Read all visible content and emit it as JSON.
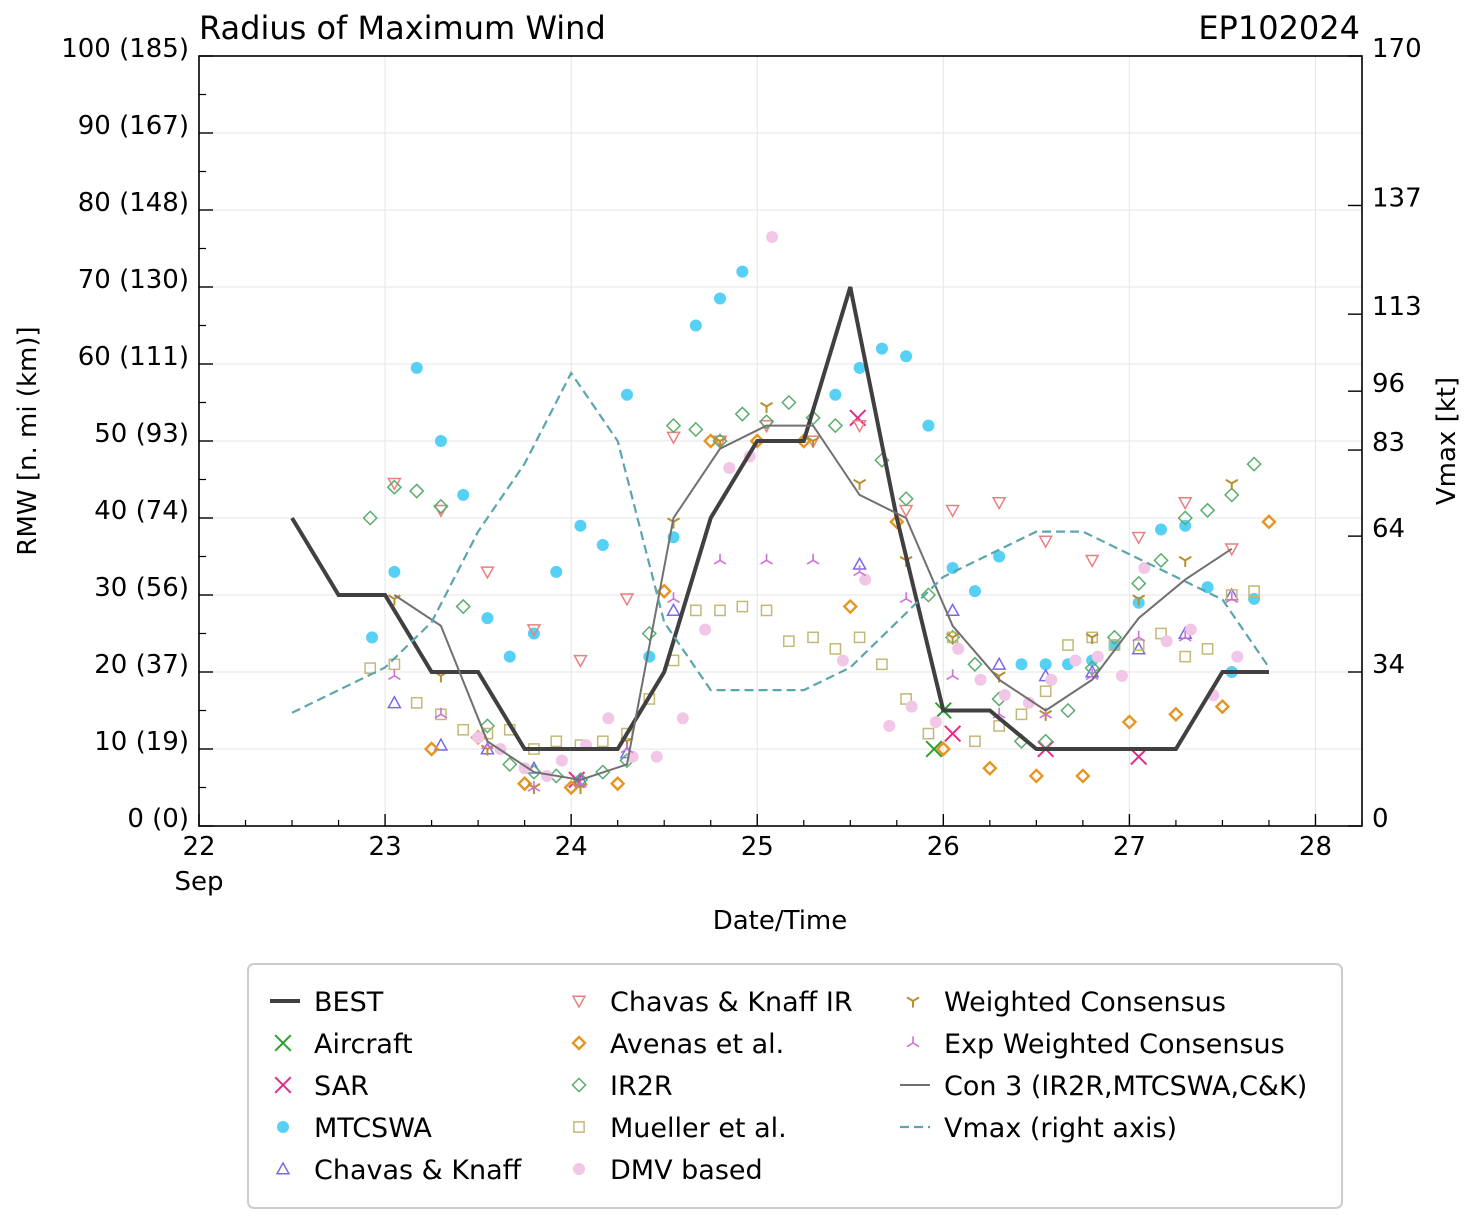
{
  "chart_data": {
    "type": "scatter",
    "title": "Radius of Maximum Wind",
    "storm_id": "EP102024",
    "xlabel": "Date/Time",
    "ylabel": "RMW [n. mi (km)]",
    "y2label": "Vmax [kt]",
    "xlim": [
      22.0,
      28.25
    ],
    "ylim": [
      0,
      100
    ],
    "xticks": [
      {
        "value": 22,
        "label": "22",
        "sublabel": "Sep"
      },
      {
        "value": 23,
        "label": "23",
        "sublabel": ""
      },
      {
        "value": 24,
        "label": "24",
        "sublabel": ""
      },
      {
        "value": 25,
        "label": "25",
        "sublabel": ""
      },
      {
        "value": 26,
        "label": "26",
        "sublabel": ""
      },
      {
        "value": 27,
        "label": "27",
        "sublabel": ""
      },
      {
        "value": 28,
        "label": "28",
        "sublabel": ""
      }
    ],
    "yticks": [
      {
        "value": 0,
        "label": "0 (0)"
      },
      {
        "value": 10,
        "label": "10 (19)"
      },
      {
        "value": 20,
        "label": "20 (37)"
      },
      {
        "value": 30,
        "label": "30 (56)"
      },
      {
        "value": 40,
        "label": "40 (74)"
      },
      {
        "value": 50,
        "label": "50 (93)"
      },
      {
        "value": 60,
        "label": "60 (111)"
      },
      {
        "value": 70,
        "label": "70 (130)"
      },
      {
        "value": 80,
        "label": "80 (148)"
      },
      {
        "value": 90,
        "label": "90 (167)"
      },
      {
        "value": 100,
        "label": "100 (185)"
      }
    ],
    "y2lim": [
      0,
      170
    ],
    "y2ticks": [
      {
        "value": 0,
        "label": "0"
      },
      {
        "value": 34,
        "label": "34"
      },
      {
        "value": 64,
        "label": "64"
      },
      {
        "value": 83,
        "label": "83"
      },
      {
        "value": 96,
        "label": "96"
      },
      {
        "value": 113,
        "label": "113"
      },
      {
        "value": 137,
        "label": "137"
      },
      {
        "value": 170,
        "label": "170"
      }
    ],
    "legend_placement": "below",
    "series": [
      {
        "name": "BEST",
        "kind": "line",
        "color": "#404040",
        "x": [
          22.5,
          22.75,
          23.0,
          23.25,
          23.5,
          23.75,
          24.0,
          24.25,
          24.5,
          24.75,
          25.0,
          25.25,
          25.5,
          25.75,
          26.0,
          26.25,
          26.5,
          26.75,
          27.0,
          27.25,
          27.5,
          27.75
        ],
        "y": [
          40,
          30,
          30,
          20,
          20,
          10,
          10,
          10,
          20,
          40,
          50,
          50,
          70,
          40,
          15,
          15,
          10,
          10,
          10,
          10,
          20,
          20
        ]
      },
      {
        "name": "Aircraft",
        "kind": "marker",
        "marker": "x",
        "color": "#2ca02c",
        "x": [
          25.95,
          26.0
        ],
        "y": [
          10,
          15
        ]
      },
      {
        "name": "SAR",
        "kind": "marker",
        "marker": "x",
        "color": "#e7298a",
        "x": [
          24.03,
          25.54,
          26.05,
          26.55,
          27.05
        ],
        "y": [
          6,
          53,
          12,
          10,
          9
        ]
      },
      {
        "name": "MTCSWA",
        "kind": "marker",
        "marker": "circle",
        "color": "#56d0f5",
        "x": [
          22.93,
          23.05,
          23.17,
          23.3,
          23.42,
          23.55,
          23.67,
          23.8,
          23.92,
          24.05,
          24.17,
          24.3,
          24.42,
          24.55,
          24.67,
          24.8,
          24.92,
          25.42,
          25.55,
          25.67,
          25.8,
          25.92,
          26.05,
          26.17,
          26.3,
          26.42,
          26.55,
          26.67,
          26.8,
          26.92,
          27.05,
          27.17,
          27.3,
          27.42,
          27.55,
          27.67
        ],
        "y": [
          24.5,
          33,
          59.5,
          50,
          43,
          27,
          22,
          25,
          33,
          39,
          36.5,
          56,
          22,
          37.5,
          65,
          68.5,
          72,
          56,
          59.5,
          62,
          61,
          52,
          33.5,
          30.5,
          35,
          21,
          21,
          21,
          21.5,
          23.5,
          29,
          38.5,
          39,
          31,
          20,
          29.5
        ]
      },
      {
        "name": "Chavas & Knaff",
        "kind": "marker",
        "marker": "triangle-up",
        "color": "#7b68ee",
        "x": [
          23.05,
          23.3,
          23.55,
          23.8,
          24.05,
          24.3,
          24.55,
          25.55,
          26.05,
          26.3,
          26.55,
          26.8,
          27.05,
          27.3,
          27.55
        ],
        "y": [
          16,
          10.5,
          10,
          7.5,
          6,
          9.5,
          28,
          34,
          28,
          21,
          19.5,
          20,
          23,
          25,
          30
        ]
      },
      {
        "name": "Chavas & Knaff IR",
        "kind": "marker",
        "marker": "triangle-down",
        "color": "#e88080",
        "x": [
          23.05,
          23.3,
          23.55,
          23.8,
          24.05,
          24.3,
          24.55,
          24.8,
          25.05,
          25.3,
          25.55,
          25.8,
          26.05,
          26.3,
          26.55,
          26.8,
          27.05,
          27.3,
          27.55
        ],
        "y": [
          44.5,
          41,
          33,
          25.5,
          21.5,
          29.5,
          50.5,
          50,
          52,
          50,
          52,
          41,
          41,
          42,
          37,
          34.5,
          37.5,
          42,
          36
        ]
      },
      {
        "name": "Avenas et al.",
        "kind": "marker",
        "marker": "diamond",
        "color": "#e69520",
        "x": [
          23.25,
          23.5,
          23.75,
          24.0,
          24.25,
          24.5,
          24.75,
          25.0,
          25.25,
          25.5,
          25.75,
          26.0,
          26.25,
          26.5,
          26.75,
          27.0,
          27.25,
          27.5,
          27.75
        ],
        "y": [
          10,
          11.5,
          5.5,
          5,
          5.5,
          30.5,
          50,
          50,
          50,
          28.5,
          39.5,
          10,
          7.5,
          6.5,
          6.5,
          13.5,
          14.5,
          15.5,
          39.5
        ]
      },
      {
        "name": "IR2R",
        "kind": "marker",
        "marker": "diamond-open",
        "color": "#5aad6d",
        "x": [
          22.92,
          23.05,
          23.17,
          23.3,
          23.42,
          23.55,
          23.67,
          23.8,
          23.92,
          24.05,
          24.17,
          24.3,
          24.42,
          24.55,
          24.67,
          24.8,
          24.92,
          25.05,
          25.17,
          25.3,
          25.42,
          25.67,
          25.8,
          25.92,
          26.05,
          26.17,
          26.3,
          26.42,
          26.55,
          26.67,
          26.8,
          26.92,
          27.05,
          27.17,
          27.3,
          27.42,
          27.55,
          27.67
        ],
        "y": [
          40,
          44,
          43.5,
          41.5,
          28.5,
          13,
          8,
          7,
          6.5,
          6,
          7,
          8.5,
          25,
          52,
          51.5,
          50,
          53.5,
          52.5,
          55,
          53,
          52,
          47.5,
          42.5,
          30,
          24.5,
          21,
          16.5,
          11,
          11,
          15,
          20.5,
          24.5,
          31.5,
          34.5,
          40,
          41,
          43,
          47
        ]
      },
      {
        "name": "Mueller et al.",
        "kind": "marker",
        "marker": "square-open",
        "color": "#c2b878",
        "x": [
          22.92,
          23.05,
          23.17,
          23.3,
          23.42,
          23.55,
          23.67,
          23.8,
          23.92,
          24.05,
          24.17,
          24.3,
          24.42,
          24.55,
          24.67,
          24.8,
          24.92,
          25.05,
          25.17,
          25.3,
          25.42,
          25.55,
          25.67,
          25.8,
          25.92,
          26.05,
          26.17,
          26.3,
          26.42,
          26.55,
          26.67,
          26.8,
          26.92,
          27.05,
          27.17,
          27.3,
          27.42,
          27.55,
          27.67
        ],
        "y": [
          20.5,
          21,
          16,
          14.5,
          12.5,
          12,
          12.5,
          10,
          11,
          10.5,
          11,
          12,
          16.5,
          21.5,
          28,
          28,
          28.5,
          28,
          24,
          24.5,
          23,
          24.5,
          21,
          16.5,
          12,
          24.5,
          11,
          13,
          14.5,
          17.5,
          23.5,
          24.5,
          23.5,
          23.5,
          25,
          22,
          23,
          30,
          30.5
        ]
      },
      {
        "name": "DMV based",
        "kind": "marker",
        "marker": "circle",
        "color": "#f2c6e6",
        "x": [
          23.5,
          23.62,
          23.75,
          23.87,
          23.95,
          24.08,
          24.2,
          24.33,
          24.46,
          24.6,
          24.72,
          24.85,
          24.96,
          25.08,
          25.46,
          25.58,
          25.71,
          25.83,
          25.96,
          26.08,
          26.2,
          26.33,
          26.46,
          26.58,
          26.71,
          26.83,
          26.96,
          27.08,
          27.2,
          27.33,
          27.45,
          27.58
        ],
        "y": [
          11.5,
          10,
          7.5,
          6.5,
          8.5,
          10.5,
          14,
          9,
          9,
          14,
          25.5,
          46.5,
          48,
          76.5,
          21.5,
          32,
          13,
          15.5,
          13.5,
          23,
          19,
          17,
          16,
          19,
          21.5,
          22,
          19.5,
          33.5,
          24,
          25.5,
          17,
          22
        ]
      },
      {
        "name": "Weighted Consensus",
        "kind": "marker",
        "marker": "tri-down",
        "color": "#b8902e",
        "x": [
          23.05,
          23.3,
          23.55,
          23.8,
          24.05,
          24.3,
          24.55,
          24.8,
          25.05,
          25.3,
          25.55,
          25.8,
          26.05,
          26.3,
          26.55,
          26.8,
          27.05,
          27.3,
          27.55
        ],
        "y": [
          29.5,
          19.5,
          10,
          5,
          5,
          11,
          39.5,
          50,
          54.5,
          50,
          44.5,
          34.5,
          24.5,
          19.5,
          14.5,
          24.5,
          29.5,
          34.5,
          44.5
        ]
      },
      {
        "name": "Exp Weighted Consensus",
        "kind": "marker",
        "marker": "tri-up",
        "color": "#cf6fd8",
        "x": [
          23.05,
          23.3,
          23.55,
          23.8,
          24.05,
          24.3,
          24.55,
          24.8,
          25.05,
          25.3,
          25.55,
          25.8,
          26.05,
          26.3,
          26.55,
          26.8,
          27.05,
          27.3,
          27.55
        ],
        "y": [
          19.5,
          14.5,
          10.5,
          5,
          5.5,
          10,
          29.5,
          34.5,
          34.5,
          34.5,
          33,
          29.5,
          19.5,
          14.5,
          14.5,
          19.5,
          24.5,
          24.5,
          29.5
        ]
      },
      {
        "name": "Con 3 (IR2R,MTCSWA,C&K)",
        "kind": "line",
        "color": "#707070",
        "x": [
          23.05,
          23.3,
          23.55,
          23.8,
          24.05,
          24.3,
          24.55,
          24.8,
          25.05,
          25.3,
          25.55,
          25.8,
          26.05,
          26.3,
          26.55,
          26.8,
          27.05,
          27.3,
          27.55
        ],
        "y": [
          30,
          26,
          11,
          7,
          6,
          8,
          40,
          49,
          52,
          52,
          43,
          40,
          26,
          19,
          15,
          19,
          27,
          32,
          36
        ]
      },
      {
        "name": "Vmax (right axis)",
        "kind": "line",
        "dashed": true,
        "axis": "right",
        "color": "#5ba5ad",
        "x": [
          22.5,
          23.0,
          23.25,
          23.5,
          23.75,
          24.0,
          24.25,
          24.5,
          24.75,
          25.0,
          25.25,
          25.5,
          25.75,
          26.0,
          26.25,
          26.5,
          26.75,
          27.0,
          27.25,
          27.5,
          27.75
        ],
        "y": [
          25,
          35,
          45,
          65,
          80,
          100,
          85,
          45,
          30,
          30,
          30,
          35,
          45,
          55,
          60,
          65,
          65,
          60,
          55,
          50,
          35
        ]
      }
    ]
  }
}
